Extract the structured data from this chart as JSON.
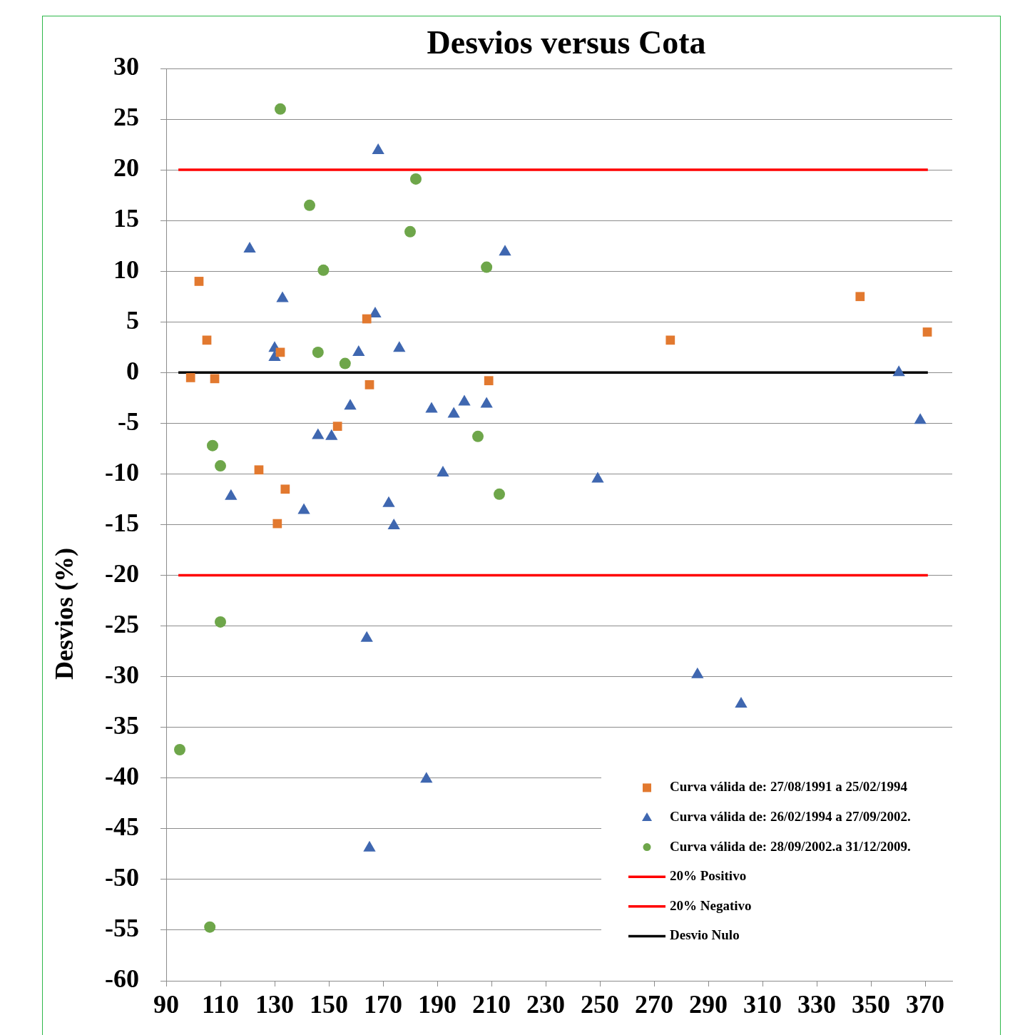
{
  "chart_data": {
    "type": "scatter",
    "title": "Desvios versus Cota",
    "ylabel": "Desvios (%)",
    "xlim": [
      90,
      380
    ],
    "xticks": [
      90,
      110,
      130,
      150,
      170,
      190,
      210,
      230,
      250,
      270,
      290,
      310,
      330,
      350,
      370
    ],
    "ylim": [
      -60,
      30
    ],
    "yticks": [
      30,
      25,
      20,
      15,
      10,
      5,
      0,
      -5,
      -10,
      -15,
      -20,
      -25,
      -30,
      -35,
      -40,
      -45,
      -50,
      -55,
      -60
    ],
    "grid": "y",
    "legend": "bottom right",
    "series": [
      {
        "name": "Curva válida de: 27/08/1991 a 25/02/1994",
        "type": "scatter",
        "marker": "square",
        "color": "#e2792f",
        "x": [
          102.1,
          105,
          99,
          107.9,
          132.1,
          124.2,
          133.9,
          131,
          153.2,
          164,
          165,
          209,
          276,
          346,
          370.8
        ],
        "values": [
          9,
          3.2,
          -0.5,
          -0.6,
          2,
          -9.6,
          -11.5,
          -14.9,
          -5.3,
          5.3,
          -1.2,
          -0.8,
          3.2,
          7.5,
          4
        ]
      },
      {
        "name": "Curva válida de: 26/02/1994 a 27/09/2002.",
        "type": "scatter",
        "marker": "triangle",
        "color": "#3f67b0",
        "x": [
          120.8,
          132.9,
          130,
          130,
          113.9,
          140.8,
          146,
          151,
          157.9,
          161,
          167.1,
          168.2,
          176,
          172.1,
          174,
          164,
          186,
          165,
          187.9,
          192.1,
          196.1,
          200,
          208.2,
          215,
          249.2,
          286,
          302.1,
          360.3,
          368.2
        ],
        "values": [
          12.2,
          7.3,
          2.4,
          1.5,
          -12.2,
          -13.6,
          -6.2,
          -6.3,
          -3.3,
          2,
          5.8,
          21.9,
          2.4,
          -12.9,
          -15.1,
          -26.2,
          -40.1,
          -46.9,
          -3.6,
          -9.9,
          -4.1,
          -2.9,
          -3.1,
          11.9,
          -10.5,
          -29.8,
          -32.7,
          0,
          -4.7
        ]
      },
      {
        "name": "Curva válida de: 28/09/2002.a 31/12/2009.",
        "type": "scatter",
        "marker": "circle",
        "color": "#6ea64a",
        "x": [
          132.1,
          142.9,
          148,
          182.1,
          180,
          208.2,
          146,
          156,
          107.1,
          110,
          205,
          212.9,
          110,
          95,
          106.1
        ],
        "values": [
          26,
          16.5,
          10.1,
          19.1,
          13.9,
          10.4,
          2,
          0.9,
          -7.2,
          -9.2,
          -6.3,
          -12,
          -24.6,
          -37.2,
          -54.7
        ]
      },
      {
        "name": "20% Positivo",
        "type": "line",
        "marker": "none",
        "color": "#ff0000",
        "x": [
          94.5,
          371
        ],
        "values": [
          20,
          20
        ]
      },
      {
        "name": "20% Negativo",
        "type": "line",
        "marker": "none",
        "color": "#ff0000",
        "x": [
          94.5,
          371
        ],
        "values": [
          -20,
          -20
        ]
      },
      {
        "name": "Desvio Nulo",
        "type": "line",
        "marker": "none",
        "color": "#000000",
        "x": [
          94.5,
          371
        ],
        "values": [
          0,
          0
        ]
      }
    ]
  }
}
